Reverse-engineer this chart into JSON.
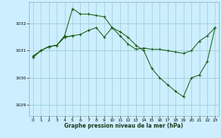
{
  "bg_color": "#cceeff",
  "grid_color": "#99cccc",
  "line_color": "#1a5c1a",
  "xlabel": "Graphe pression niveau de la mer (hPa)",
  "ylim": [
    1028.6,
    1032.8
  ],
  "xlim": [
    -0.5,
    23.5
  ],
  "yticks": [
    1029,
    1030,
    1031,
    1032
  ],
  "xticks": [
    0,
    1,
    2,
    3,
    4,
    5,
    6,
    7,
    8,
    9,
    10,
    11,
    12,
    13,
    14,
    15,
    16,
    17,
    18,
    19,
    20,
    21,
    22,
    23
  ],
  "series1_x": [
    0,
    1,
    2,
    3,
    4,
    5,
    6,
    7,
    8,
    9,
    10,
    11,
    12,
    13,
    14,
    15,
    16,
    17,
    18,
    19,
    20,
    21,
    22,
    23
  ],
  "series1_y": [
    1030.8,
    1031.0,
    1031.15,
    1031.2,
    1031.55,
    1032.55,
    1032.35,
    1032.35,
    1032.3,
    1032.25,
    1031.85,
    1031.55,
    1031.25,
    1031.05,
    1031.1,
    1031.05,
    1031.05,
    1031.0,
    1030.95,
    1030.9,
    1031.0,
    1031.35,
    1031.55,
    1031.85
  ],
  "series2_x": [
    0,
    1,
    2,
    3,
    4,
    5,
    6,
    7,
    8,
    9,
    10,
    11,
    12,
    13,
    14,
    15,
    16,
    17,
    18,
    19,
    20,
    21,
    22,
    23
  ],
  "series2_y": [
    1030.75,
    1031.0,
    1031.15,
    1031.2,
    1031.5,
    1031.55,
    1031.6,
    1031.75,
    1031.85,
    1031.5,
    1031.85,
    1031.7,
    1031.5,
    1031.2,
    1031.0,
    1030.35,
    1030.0,
    1029.75,
    1029.5,
    1029.3,
    1030.0,
    1030.1,
    1030.6,
    1031.85
  ],
  "series3_x": [
    0,
    1,
    2,
    3,
    4,
    5
  ],
  "series3_y": [
    1030.75,
    1031.0,
    1031.15,
    1031.2,
    1031.5,
    1031.55
  ]
}
